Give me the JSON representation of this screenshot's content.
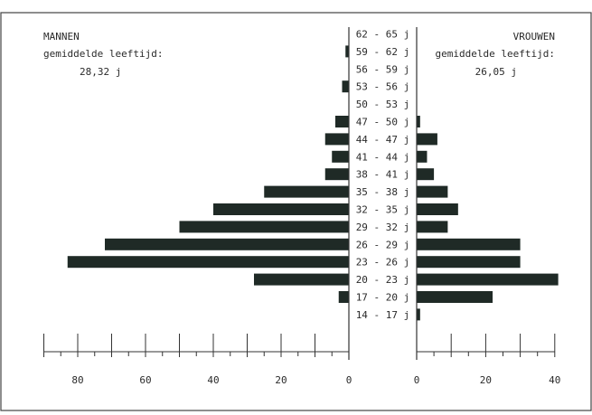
{
  "chart_data": {
    "type": "bar",
    "orientation": "horizontal",
    "subtype": "population-pyramid",
    "categories": [
      "62 - 65 j",
      "59 - 62 j",
      "56 - 59 j",
      "53 - 56 j",
      "50 - 53 j",
      "47 - 50 j",
      "44 - 47 j",
      "41 - 44 j",
      "38 - 41 j",
      "35 - 38 j",
      "32 - 35 j",
      "29 - 32 j",
      "26 - 29 j",
      "23 - 26 j",
      "20 - 23 j",
      "17 - 20 j",
      "14 - 17 j"
    ],
    "series": [
      {
        "name": "MANNEN",
        "subtitle": "gemiddelde leeftijd:",
        "mean_age": "28,32 j",
        "values": [
          0,
          1,
          0,
          2,
          0,
          4,
          7,
          5,
          7,
          25,
          40,
          50,
          72,
          83,
          28,
          3,
          0
        ],
        "xlim": [
          90,
          0
        ],
        "ticks": [
          "80",
          "60",
          "40",
          "20",
          "0"
        ]
      },
      {
        "name": "VROUWEN",
        "subtitle": "gemiddelde leeftijd:",
        "mean_age": "26,05 j",
        "values": [
          0,
          0,
          0,
          0,
          0,
          1,
          6,
          3,
          5,
          9,
          12,
          9,
          30,
          30,
          41,
          22,
          1
        ],
        "xlim": [
          0,
          40
        ],
        "ticks": [
          "0",
          "20",
          "40"
        ]
      }
    ],
    "bar_color": "#1f2a26",
    "grid": false
  }
}
